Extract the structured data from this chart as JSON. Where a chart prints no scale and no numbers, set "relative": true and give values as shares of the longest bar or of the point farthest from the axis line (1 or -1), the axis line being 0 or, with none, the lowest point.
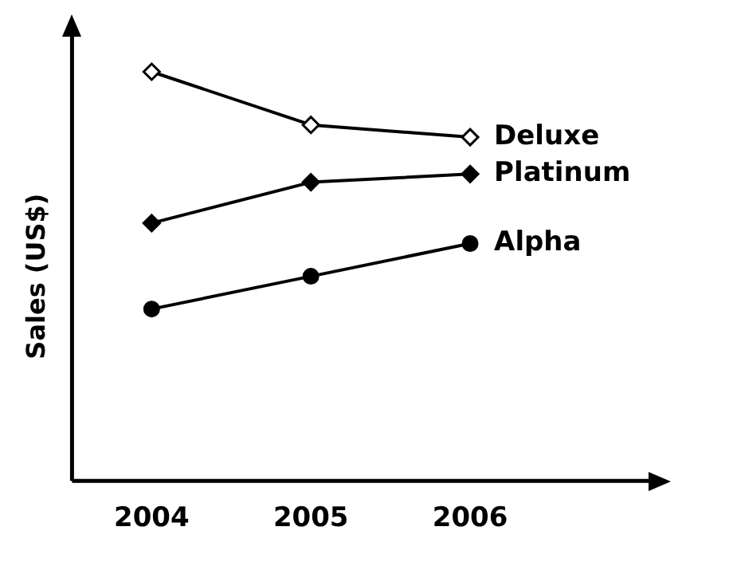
{
  "chart_data": {
    "type": "line",
    "relative": true,
    "ylabel": "Sales (US$)",
    "categories": [
      "2004",
      "2005",
      "2006"
    ],
    "legend": false,
    "grid": false,
    "series": [
      {
        "name": "Deluxe",
        "color": "#000000",
        "marker": "diamond-open",
        "values": [
          1,
          0.87,
          0.84
        ]
      },
      {
        "name": "Platinum",
        "color": "#000000",
        "marker": "diamond",
        "values": [
          0.63,
          0.73,
          0.75
        ]
      },
      {
        "name": "Alpha",
        "color": "#000000",
        "marker": "circle",
        "values": [
          0.42,
          0.5,
          0.58
        ]
      }
    ]
  }
}
